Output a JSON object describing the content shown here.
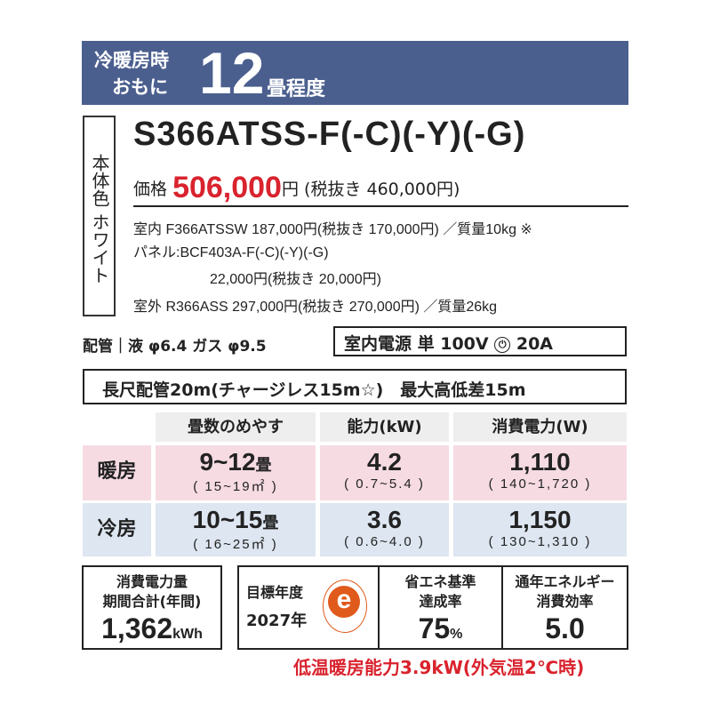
{
  "header": {
    "line1": "冷暖房時",
    "line2": "おもに",
    "size": "12",
    "unit": "畳程度"
  },
  "body_color": "本体色 ホワイト",
  "model": "S366ATSS-F(-C)(-Y)(-G)",
  "price": {
    "label": "価格",
    "value": "506,000",
    "yen": "円",
    "excl": "(税抜き 460,000円)"
  },
  "details": [
    "室内 F366ATSSW 187,000円(税抜き 170,000円) ／質量10kg ※",
    "パネル:BCF403A-F(-C)(-Y)(-G)",
    "22,000円(税抜き 20,000円)",
    "室外 R366ASS 297,000円(税抜き 270,000円) ／質量26kg"
  ],
  "piping": "配管｜液 φ6.4 ガス φ9.5",
  "power": {
    "label": "室内電源 単 100V",
    "breaker_icon": "breaker-icon",
    "breaker": "20A"
  },
  "long_pipe": "長尺配管20m(チャージレス15m☆)　最大高低差15m",
  "table": {
    "headers": [
      "畳数のめやす",
      "能力(kW)",
      "消費電力(W)"
    ],
    "rows": [
      {
        "label": "暖房",
        "tatami": "9~12",
        "tatami_unit": "畳",
        "tatami_range": "( 15~19㎡ )",
        "capacity": "4.2",
        "capacity_range": "( 0.7~5.4 )",
        "power": "1,110",
        "power_range": "( 140~1,720 )"
      },
      {
        "label": "冷房",
        "tatami": "10~15",
        "tatami_unit": "畳",
        "tatami_range": "( 16~25㎡ )",
        "capacity": "3.6",
        "capacity_range": "( 0.6~4.0 )",
        "power": "1,150",
        "power_range": "( 130~1,310 )"
      }
    ],
    "colors": {
      "heat": "#f6dbe3",
      "cool": "#dde6f1"
    }
  },
  "annual": {
    "label1": "消費電力量",
    "label2": "期間合計(年間)",
    "value": "1,362",
    "unit": "kWh"
  },
  "target": {
    "label": "目標年度",
    "year": "2027年",
    "logo": "e"
  },
  "achievement": {
    "label1": "省エネ基準",
    "label2": "達成率",
    "value": "75",
    "unit": "%"
  },
  "apf": {
    "label1": "通年エネルギー",
    "label2": "消費効率",
    "value": "5.0"
  },
  "note": "低温暖房能力3.9kW(外気温2℃時)"
}
